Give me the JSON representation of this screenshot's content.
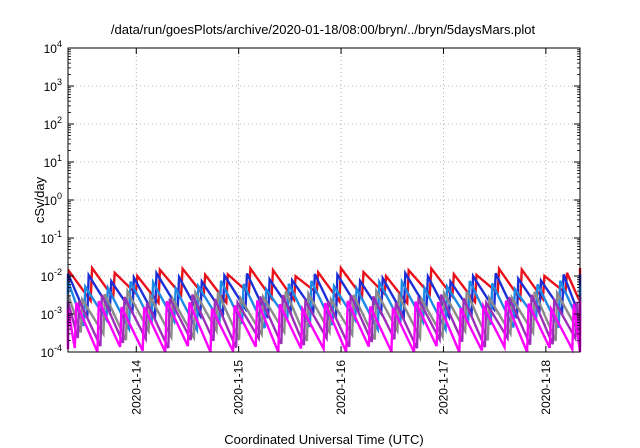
{
  "chart_data": {
    "type": "line",
    "title": "/data/run/goesPlots/archive/2020-01-18/08:00/bryn/../bryn/5daysMars.plot",
    "xlabel": "Coordinated Universal Time (UTC)",
    "ylabel": "cSv/day",
    "yscale": "log",
    "ylim": [
      0.0001,
      10000
    ],
    "y_ticks": [
      {
        "base": "10",
        "exp": "-4",
        "value": 0.0001
      },
      {
        "base": "10",
        "exp": "-3",
        "value": 0.001
      },
      {
        "base": "10",
        "exp": "-2",
        "value": 0.01
      },
      {
        "base": "10",
        "exp": "-1",
        "value": 0.1
      },
      {
        "base": "10",
        "exp": "0",
        "value": 1
      },
      {
        "base": "10",
        "exp": "1",
        "value": 10
      },
      {
        "base": "10",
        "exp": "2",
        "value": 100
      },
      {
        "base": "10",
        "exp": "3",
        "value": 1000
      },
      {
        "base": "10",
        "exp": "4",
        "value": 10000
      }
    ],
    "xlim": [
      "2020-01-13T08:00",
      "2020-01-18T08:00"
    ],
    "x_ticks": [
      "2020-1-14",
      "2020-1-15",
      "2020-1-16",
      "2020-1-17",
      "2020-1-18"
    ],
    "grid": true,
    "legend": "none",
    "series": [
      {
        "color": "#e8101a",
        "sawtooth_period_hours": 5.3,
        "peak": 0.013,
        "trough": 0.0028,
        "phase_hours": 0.0
      },
      {
        "color": "#1c2fd6",
        "sawtooth_period_hours": 5.3,
        "peak": 0.0095,
        "trough": 0.0011,
        "phase_hours": 0.8
      },
      {
        "color": "#1e88e5",
        "sawtooth_period_hours": 5.3,
        "peak": 0.006,
        "trough": 0.00055,
        "phase_hours": 1.6
      },
      {
        "color": "#8a8a8a",
        "sawtooth_period_hours": 5.3,
        "peak": 0.0032,
        "trough": 0.00028,
        "phase_hours": 2.3
      },
      {
        "color": "#9c2fb8",
        "sawtooth_period_hours": 5.3,
        "peak": 0.0026,
        "trough": 0.00018,
        "phase_hours": 3.0
      },
      {
        "color": "#ff00ff",
        "sawtooth_period_hours": 5.3,
        "peak": 0.0018,
        "trough": 0.00011,
        "phase_hours": 3.7
      }
    ]
  }
}
